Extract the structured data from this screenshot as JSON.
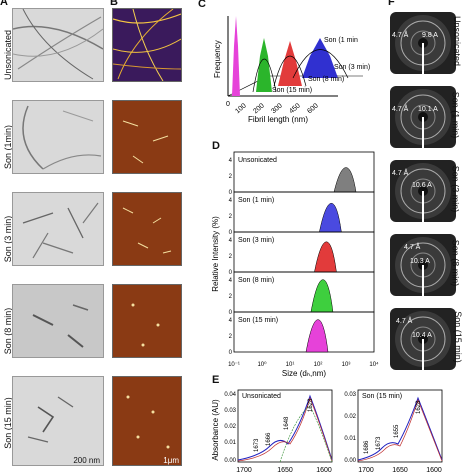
{
  "panel_letters": {
    "a": "A",
    "b": "B",
    "c": "C",
    "d": "D",
    "e": "E",
    "f": "F"
  },
  "row_labels": [
    "Unsonicated",
    "Son (1min)",
    "Son (3 min)",
    "Son (8 min)",
    "Son (15 min)"
  ],
  "scale_bars": {
    "tem": "200 nm",
    "afm": "1μm"
  },
  "saxs_labels": [
    {
      "row": "Unsonicated",
      "a": "4.7 Å",
      "b": "9.8 A"
    },
    {
      "row": "Son (1 min)",
      "a": "4.7 Å",
      "b": "10.1 A"
    },
    {
      "row": "Son (3 min)",
      "a": "4.7 Å",
      "b": "10.6 A"
    },
    {
      "row": "Son (8 min)",
      "a": "4.7 Å",
      "b": "10.3 A"
    },
    {
      "row": "Son (15 min)",
      "a": "4.7 Å",
      "b": "10.4 A"
    }
  ],
  "panel_c": {
    "ylabel": "Frequency",
    "xlabel": "Fibril length (nm)",
    "xticks": [
      "0",
      "100",
      "200",
      "300",
      "450",
      "600"
    ],
    "legend": [
      "Son (1 min",
      "Son (3 min)",
      "Son (8 min)",
      "Son (15 min)"
    ]
  },
  "panel_d": {
    "ylabel": "Relative Intensity (%)",
    "xlabel": "Size (dₕ,nm)",
    "xticks": [
      "10⁻¹",
      "10⁰",
      "10¹",
      "10²",
      "10³",
      "10⁴"
    ],
    "yticks": [
      "0",
      "2",
      "4"
    ],
    "subplots": [
      {
        "label": "Unsonicated",
        "color": "#7f7f7f"
      },
      {
        "label": "Son (1 min)",
        "color": "#4a4ae0"
      },
      {
        "label": "Son (3 min)",
        "color": "#e23b3b"
      },
      {
        "label": "Son (8 min)",
        "color": "#3ecf3e"
      },
      {
        "label": "Son (15 min)",
        "color": "#e642d9"
      }
    ]
  },
  "panel_e": {
    "ylabel": "Absorbance (AU)",
    "left": {
      "title": "Unsonicated",
      "peaks": [
        "1673",
        "1666",
        "1648",
        "1628"
      ],
      "yticks": [
        "0.00",
        "0.01",
        "0.02",
        "0.03",
        "0.04"
      ],
      "xticks": [
        "1700",
        "1650",
        "1600"
      ]
    },
    "right": {
      "title": "Son (15 min)",
      "peaks": [
        "1686",
        "1673",
        "1655",
        "1628"
      ],
      "yticks": [
        "0.00",
        "0.01",
        "0.02",
        "0.03"
      ],
      "xticks": [
        "1700",
        "1650",
        "1600"
      ]
    }
  },
  "chart_data": [
    {
      "type": "area",
      "title": "",
      "xlabel": "Fibril length (nm)",
      "ylabel": "Frequency",
      "series": [
        {
          "name": "Son (15 min)",
          "peak_x": 0,
          "color": "#e642d9"
        },
        {
          "name": "Son (8 min)",
          "peak_x": 200,
          "color": "#2bb52b"
        },
        {
          "name": "Son (3 min)",
          "peak_x": 330,
          "color": "#e23b3b"
        },
        {
          "name": "Son (1 min",
          "peak_x": 460,
          "color": "#3030d0"
        }
      ]
    },
    {
      "type": "area",
      "xlabel": "Size (dₕ,nm)",
      "ylabel": "Relative Intensity (%)",
      "xscale": "log",
      "series": [
        {
          "name": "Unsonicated",
          "peak_x": 1000,
          "peak_y": 3.4
        },
        {
          "name": "Son (1 min)",
          "peak_x": 300,
          "peak_y": 4.0
        },
        {
          "name": "Son (3 min)",
          "peak_x": 200,
          "peak_y": 4.2
        },
        {
          "name": "Son (8 min)",
          "peak_x": 150,
          "peak_y": 4.5
        },
        {
          "name": "Son (15 min)",
          "peak_x": 100,
          "peak_y": 4.5
        }
      ]
    }
  ]
}
